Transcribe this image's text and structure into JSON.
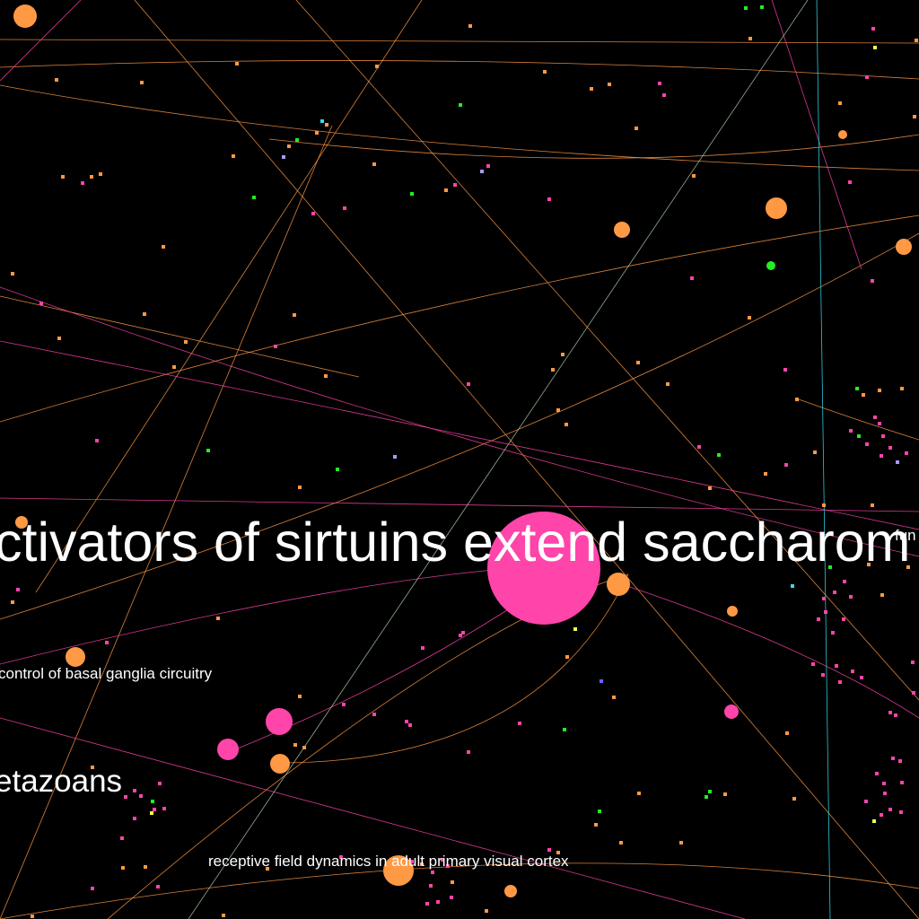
{
  "labels": {
    "main_title": "ctivators of sirtuins extend saccharom",
    "right_fragment": "fun",
    "basal": "control of basal ganglia circuitry",
    "metazoans": "etazoans",
    "receptive": "receptive field dynamics in adult primary visual cortex"
  },
  "colors": {
    "background": "#000000",
    "orange": "#ff9944",
    "pink": "#ff44aa",
    "green": "#22ee22",
    "cyan": "#33ddee",
    "blue": "#6666ff",
    "lavender": "#aa99ff",
    "yellow": "#ffff44",
    "label": "#ffffff"
  }
}
